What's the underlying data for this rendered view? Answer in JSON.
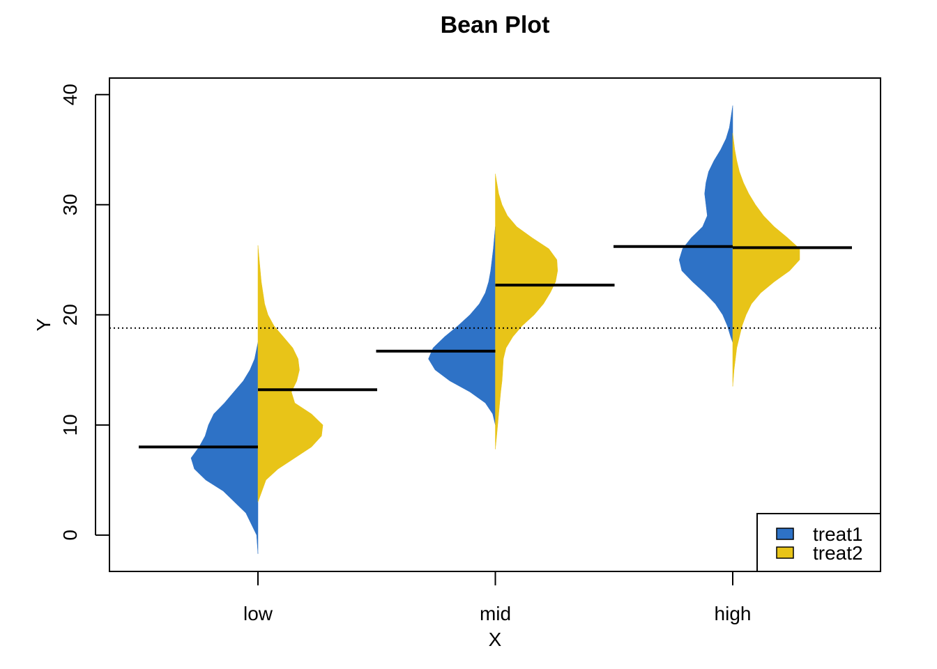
{
  "chart_data": {
    "type": "bean",
    "title": "Bean Plot",
    "xlabel": "X",
    "ylabel": "Y",
    "categories": [
      "low",
      "mid",
      "high"
    ],
    "yticks": [
      0,
      10,
      20,
      30,
      40
    ],
    "ylim": [
      -3.3,
      41.5
    ],
    "overall_mean": 18.8,
    "legend_position": "bottom-right",
    "grid": false,
    "series": [
      {
        "name": "treat1",
        "color": "#2E72C6",
        "means": [
          8.0,
          16.7,
          26.2
        ],
        "ranges": [
          [
            -1.7,
            17.5
          ],
          [
            10.0,
            28.0
          ],
          [
            17.5,
            39.0
          ]
        ]
      },
      {
        "name": "treat2",
        "color": "#E8C418",
        "means": [
          13.2,
          22.7,
          26.1
        ],
        "ranges": [
          [
            3.0,
            26.3
          ],
          [
            7.8,
            32.8
          ],
          [
            13.5,
            36.5
          ]
        ]
      }
    ],
    "density_profiles": {
      "low": {
        "treat1": [
          [
            -1.7,
            0.0
          ],
          [
            0,
            0.02
          ],
          [
            2,
            0.18
          ],
          [
            4,
            0.52
          ],
          [
            5,
            0.78
          ],
          [
            6,
            0.95
          ],
          [
            7,
            1.0
          ],
          [
            8,
            0.88
          ],
          [
            9,
            0.79
          ],
          [
            10,
            0.74
          ],
          [
            11,
            0.66
          ],
          [
            12,
            0.5
          ],
          [
            13,
            0.36
          ],
          [
            14,
            0.22
          ],
          [
            15,
            0.12
          ],
          [
            16,
            0.05
          ],
          [
            17.5,
            0.0
          ]
        ],
        "treat2": [
          [
            3,
            0.0
          ],
          [
            5,
            0.12
          ],
          [
            6,
            0.3
          ],
          [
            7,
            0.55
          ],
          [
            8,
            0.8
          ],
          [
            9,
            0.95
          ],
          [
            10,
            0.97
          ],
          [
            11,
            0.8
          ],
          [
            12,
            0.55
          ],
          [
            13,
            0.5
          ],
          [
            14,
            0.58
          ],
          [
            15,
            0.62
          ],
          [
            16,
            0.6
          ],
          [
            17,
            0.52
          ],
          [
            18,
            0.38
          ],
          [
            19,
            0.24
          ],
          [
            20,
            0.15
          ],
          [
            21,
            0.1
          ],
          [
            23,
            0.05
          ],
          [
            26.3,
            0.0
          ]
        ]
      },
      "mid": {
        "treat1": [
          [
            10,
            0.0
          ],
          [
            11,
            0.04
          ],
          [
            12,
            0.15
          ],
          [
            13,
            0.38
          ],
          [
            14,
            0.68
          ],
          [
            15,
            0.9
          ],
          [
            16,
            1.0
          ],
          [
            17,
            0.93
          ],
          [
            18,
            0.76
          ],
          [
            19,
            0.56
          ],
          [
            20,
            0.38
          ],
          [
            21,
            0.24
          ],
          [
            22,
            0.15
          ],
          [
            23,
            0.1
          ],
          [
            24,
            0.07
          ],
          [
            25,
            0.05
          ],
          [
            26,
            0.03
          ],
          [
            28,
            0.0
          ]
        ],
        "treat2": [
          [
            7.8,
            0.0
          ],
          [
            9,
            0.02
          ],
          [
            11,
            0.05
          ],
          [
            13,
            0.08
          ],
          [
            14,
            0.1
          ],
          [
            15,
            0.11
          ],
          [
            16,
            0.12
          ],
          [
            17,
            0.16
          ],
          [
            18,
            0.26
          ],
          [
            19,
            0.4
          ],
          [
            20,
            0.58
          ],
          [
            21,
            0.72
          ],
          [
            22,
            0.82
          ],
          [
            23,
            0.9
          ],
          [
            24,
            0.93
          ],
          [
            25,
            0.92
          ],
          [
            26,
            0.8
          ],
          [
            27,
            0.55
          ],
          [
            28,
            0.32
          ],
          [
            29,
            0.18
          ],
          [
            30,
            0.1
          ],
          [
            31,
            0.05
          ],
          [
            32.8,
            0.0
          ]
        ]
      },
      "high": {
        "treat1": [
          [
            17.5,
            0.0
          ],
          [
            18,
            0.03
          ],
          [
            19,
            0.08
          ],
          [
            20,
            0.15
          ],
          [
            21,
            0.26
          ],
          [
            22,
            0.42
          ],
          [
            23,
            0.6
          ],
          [
            24,
            0.76
          ],
          [
            25,
            0.8
          ],
          [
            26,
            0.75
          ],
          [
            27,
            0.62
          ],
          [
            28,
            0.45
          ],
          [
            29,
            0.38
          ],
          [
            30,
            0.4
          ],
          [
            31,
            0.42
          ],
          [
            32,
            0.4
          ],
          [
            33,
            0.36
          ],
          [
            34,
            0.28
          ],
          [
            35,
            0.18
          ],
          [
            36,
            0.1
          ],
          [
            37,
            0.05
          ],
          [
            39,
            0.0
          ]
        ],
        "treat2": [
          [
            13.5,
            0.0
          ],
          [
            15,
            0.02
          ],
          [
            17,
            0.06
          ],
          [
            19,
            0.14
          ],
          [
            20,
            0.2
          ],
          [
            21,
            0.28
          ],
          [
            22,
            0.42
          ],
          [
            23,
            0.62
          ],
          [
            24,
            0.85
          ],
          [
            25,
            1.0
          ],
          [
            26,
            1.0
          ],
          [
            27,
            0.82
          ],
          [
            28,
            0.62
          ],
          [
            29,
            0.46
          ],
          [
            30,
            0.34
          ],
          [
            31,
            0.24
          ],
          [
            32,
            0.16
          ],
          [
            33,
            0.1
          ],
          [
            34,
            0.06
          ],
          [
            35,
            0.03
          ],
          [
            36.5,
            0.0
          ]
        ]
      }
    }
  }
}
